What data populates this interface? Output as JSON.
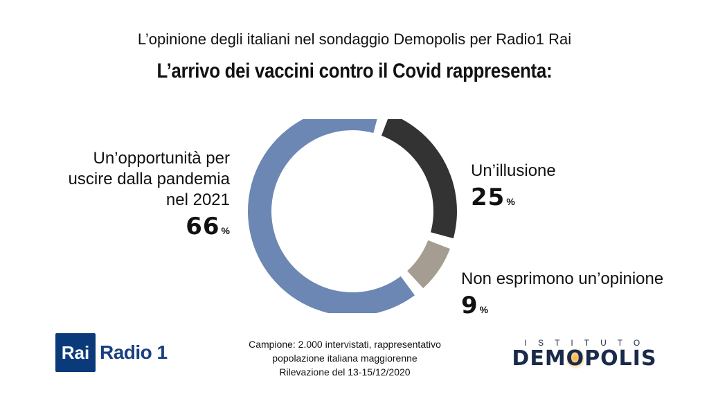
{
  "header": {
    "subtitle": "L’opinione degli italiani nel sondaggio Demopolis per Radio1 Rai",
    "title": "L’arrivo dei vaccini contro il Covid rappresenta:"
  },
  "chart_data": {
    "type": "pie",
    "title": "L’arrivo dei vaccini contro il Covid rappresenta:",
    "donut": true,
    "unit": "%",
    "slices": [
      {
        "label": "Un’opportunità per uscire dalla pandemia nel 2021",
        "value": 66,
        "color": "#6c87b3"
      },
      {
        "label": "Un’illusione",
        "value": 25,
        "color": "#333333"
      },
      {
        "label": "Non esprimono un’opinione",
        "value": 9,
        "color": "#a59d92"
      }
    ]
  },
  "labels": {
    "left_lines": [
      "Un’opportunità per",
      "uscire dalla pandemia",
      "nel 2021"
    ],
    "left_pct": "66",
    "right_top": "Un’illusione",
    "right_top_pct": "25",
    "right_bot": "Non esprimono un’opinione",
    "right_bot_pct": "9",
    "pct_sign": "%"
  },
  "footer": {
    "rai": "Rai",
    "radio": "Radio 1",
    "note_lines": [
      "Campione: 2.000 intervistati, rappresentativo",
      "popolazione italiana maggiorenne",
      "Rilevazione del 13-15/12/2020"
    ],
    "istituto": "ISTITUTO",
    "demopolis_pre": "DEM",
    "demopolis_o": "O",
    "demopolis_post": "POLIS"
  }
}
